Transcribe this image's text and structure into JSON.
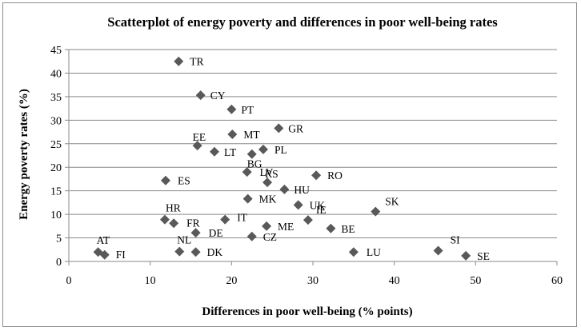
{
  "chart_data": {
    "type": "scatter",
    "title": "Scatterplot of energy poverty and differences in poor well-being rates",
    "xlabel": "Differences in poor well-being (% points)",
    "ylabel": "Energy poverty rates (%)",
    "xlim": [
      0,
      60
    ],
    "ylim": [
      0,
      45
    ],
    "x_ticks": [
      0,
      10,
      20,
      30,
      40,
      50,
      60
    ],
    "y_ticks": [
      0,
      5,
      10,
      15,
      20,
      25,
      30,
      35,
      40,
      45
    ],
    "grid": "horizontal",
    "marker_color": "#595959",
    "points": [
      {
        "label": "TR",
        "x": 13.5,
        "y": 42.5
      },
      {
        "label": "CY",
        "x": 16.2,
        "y": 35.3
      },
      {
        "label": "PT",
        "x": 20.0,
        "y": 32.3
      },
      {
        "label": "GR",
        "x": 25.8,
        "y": 28.3
      },
      {
        "label": "MT",
        "x": 20.1,
        "y": 27.0
      },
      {
        "label": "EE",
        "x": 15.8,
        "y": 24.6
      },
      {
        "label": "PL",
        "x": 23.9,
        "y": 23.8
      },
      {
        "label": "LT",
        "x": 17.9,
        "y": 23.3
      },
      {
        "label": "BG",
        "x": 22.5,
        "y": 22.8
      },
      {
        "label": "LV",
        "x": 21.9,
        "y": 19.0
      },
      {
        "label": "RO",
        "x": 30.4,
        "y": 18.3
      },
      {
        "label": "ES",
        "x": 11.9,
        "y": 17.2
      },
      {
        "label": "RS",
        "x": 24.4,
        "y": 16.8
      },
      {
        "label": "HU",
        "x": 26.5,
        "y": 15.3
      },
      {
        "label": "MK",
        "x": 22.0,
        "y": 13.3
      },
      {
        "label": "UK",
        "x": 28.2,
        "y": 12.0
      },
      {
        "label": "SK",
        "x": 37.7,
        "y": 10.6
      },
      {
        "label": "HR",
        "x": 11.8,
        "y": 8.9
      },
      {
        "label": "IT",
        "x": 19.2,
        "y": 8.9
      },
      {
        "label": "IE",
        "x": 29.4,
        "y": 8.8
      },
      {
        "label": "FR",
        "x": 12.9,
        "y": 8.1
      },
      {
        "label": "ME",
        "x": 24.3,
        "y": 7.5
      },
      {
        "label": "BE",
        "x": 32.2,
        "y": 7.0
      },
      {
        "label": "DE",
        "x": 15.6,
        "y": 6.1
      },
      {
        "label": "CZ",
        "x": 22.5,
        "y": 5.3
      },
      {
        "label": "SI",
        "x": 45.4,
        "y": 2.3
      },
      {
        "label": "AT",
        "x": 3.6,
        "y": 2.0
      },
      {
        "label": "NL",
        "x": 13.6,
        "y": 2.1
      },
      {
        "label": "DK",
        "x": 15.6,
        "y": 2.0
      },
      {
        "label": "LU",
        "x": 35.0,
        "y": 2.0
      },
      {
        "label": "FI",
        "x": 4.4,
        "y": 1.4
      },
      {
        "label": "SE",
        "x": 48.8,
        "y": 1.2
      }
    ]
  }
}
